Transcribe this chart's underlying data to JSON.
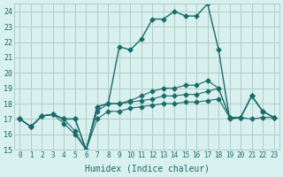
{
  "xlabel": "Humidex (Indice chaleur)",
  "ylabel": "",
  "bg_color": "#d8f0ee",
  "grid_color": "#b0ccc8",
  "line_color": "#1a6b6b",
  "xlim": [
    -0.5,
    23.5
  ],
  "ylim": [
    15,
    24.5
  ],
  "yticks": [
    15,
    16,
    17,
    18,
    19,
    20,
    21,
    22,
    23,
    24
  ],
  "xtick_labels": [
    "0",
    "1",
    "2",
    "3",
    "4",
    "5",
    "6",
    "7",
    "8",
    "9",
    "10",
    "11",
    "12",
    "13",
    "14",
    "15",
    "16",
    "17",
    "18",
    "19",
    "20",
    "21",
    "22",
    "23"
  ],
  "series": [
    [
      17.0,
      16.5,
      17.2,
      17.3,
      17.0,
      17.0,
      15.0,
      17.8,
      18.0,
      21.7,
      21.5,
      22.2,
      23.5,
      23.5,
      24.0,
      23.7,
      23.7,
      24.5,
      21.5,
      17.0,
      17.1,
      18.5,
      17.5,
      17.1
    ],
    [
      17.0,
      16.5,
      17.2,
      17.3,
      17.0,
      16.2,
      15.0,
      17.0,
      17.5,
      17.5,
      17.7,
      17.8,
      17.9,
      18.0,
      18.0,
      18.1,
      18.1,
      18.2,
      18.3,
      17.1,
      17.1,
      17.0,
      17.1,
      17.1
    ],
    [
      17.0,
      16.5,
      17.2,
      17.3,
      16.7,
      16.0,
      15.0,
      17.5,
      18.0,
      18.0,
      18.1,
      18.2,
      18.3,
      18.5,
      18.5,
      18.6,
      18.6,
      18.8,
      19.0,
      17.1,
      17.1,
      18.5,
      17.5,
      17.1
    ],
    [
      17.0,
      16.5,
      17.2,
      17.3,
      17.0,
      17.0,
      15.0,
      17.8,
      18.0,
      18.0,
      18.2,
      18.5,
      18.8,
      19.0,
      19.0,
      19.2,
      19.2,
      19.5,
      19.0,
      17.1,
      17.1,
      18.5,
      17.5,
      17.1
    ]
  ]
}
